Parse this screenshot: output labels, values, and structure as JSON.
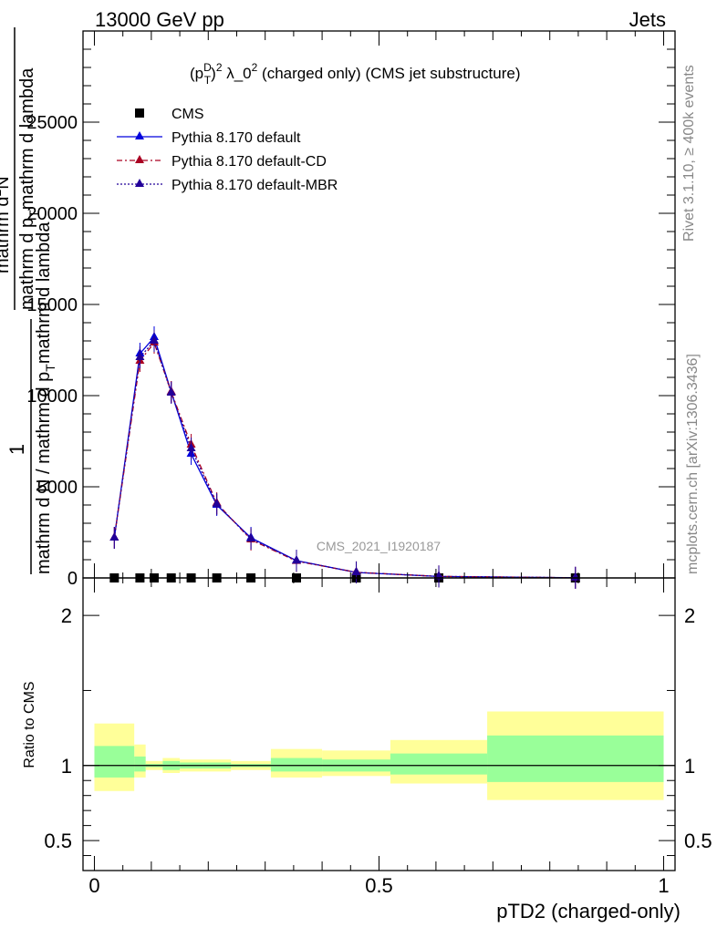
{
  "header": {
    "left": "13000 GeV pp",
    "right": "Jets"
  },
  "side": {
    "rivet": "Rivet 3.1.10, ≥ 400k events",
    "mcplots": "mcplots.cern.ch [arXiv:1306.3436]"
  },
  "watermark": "CMS_2021_I1920187",
  "chart_data": [
    {
      "type": "line",
      "title": "(p_T^D)^2 λ_0^2 (charged only) (CMS jet substructure)",
      "ylabel": "1 / mathrm d N / mathrm d p_T mathrm d lambda · mathrm d^2N / mathrm d p_T mathrm d lambda",
      "ylabel_parts": [
        "1",
        "mathrm d N / mathrm d p",
        "T",
        "mathrm d lambda",
        "mathrm d",
        "2",
        "N",
        "mathrm d p",
        "T",
        "mathrm d lambda"
      ],
      "xlim": [
        -0.02,
        1.02
      ],
      "ylim": [
        0,
        30000
      ],
      "yticks": [
        0,
        5000,
        10000,
        15000,
        20000,
        25000
      ],
      "ytick_labels": [
        "0",
        "5000",
        "10000",
        "15000",
        "20000",
        "25000"
      ],
      "legend_position": "top-left",
      "legend": [
        "CMS",
        "Pythia 8.170 default",
        "Pythia 8.170 default-CD",
        "Pythia 8.170 default-MBR"
      ],
      "bin_edges": [
        0.0,
        0.07,
        0.09,
        0.12,
        0.15,
        0.19,
        0.24,
        0.31,
        0.4,
        0.52,
        0.69,
        1.0
      ],
      "x": [
        0.035,
        0.08,
        0.105,
        0.135,
        0.17,
        0.215,
        0.275,
        0.355,
        0.46,
        0.605,
        0.845
      ],
      "series": [
        {
          "name": "CMS",
          "color": "#000000",
          "marker": "square",
          "values": [
            0,
            0,
            0,
            0,
            0,
            0,
            0,
            0,
            0,
            0,
            0
          ]
        },
        {
          "name": "Pythia 8.170 default",
          "color": "#0000dd",
          "marker": "triangle",
          "dash": "solid",
          "values": [
            2200,
            12300,
            13200,
            10200,
            6800,
            4000,
            2200,
            950,
            300,
            80,
            10
          ]
        },
        {
          "name": "Pythia 8.170 default-CD",
          "color": "#aa0022",
          "marker": "triangle",
          "dash": "dashdot",
          "values": [
            2200,
            11900,
            12900,
            10200,
            7300,
            4100,
            2100,
            920,
            310,
            85,
            10
          ]
        },
        {
          "name": "Pythia 8.170 default-MBR",
          "color": "#220099",
          "marker": "triangle",
          "dash": "dotted",
          "values": [
            2200,
            12100,
            13000,
            10150,
            7100,
            4050,
            2150,
            940,
            305,
            82,
            10
          ]
        }
      ]
    },
    {
      "type": "area",
      "ylabel": "Ratio to CMS",
      "xlabel": "pTD2 (charged-only)",
      "xlim": [
        -0.02,
        1.02
      ],
      "ylim": [
        0.3,
        2.25
      ],
      "yticks": [
        0.5,
        1,
        2
      ],
      "ytick_labels": [
        "0.5",
        "1",
        "2"
      ],
      "xticks": [
        0,
        0.5,
        1
      ],
      "xtick_labels": [
        "0",
        "0.5",
        "1"
      ],
      "bin_edges": [
        0.0,
        0.07,
        0.09,
        0.12,
        0.15,
        0.19,
        0.24,
        0.31,
        0.4,
        0.52,
        0.69,
        1.0
      ],
      "band_total": {
        "color": "#ffff99",
        "lo": [
          0.83,
          0.92,
          0.97,
          0.95,
          0.96,
          0.96,
          0.97,
          0.92,
          0.93,
          0.88,
          0.77
        ],
        "hi": [
          1.28,
          1.14,
          1.03,
          1.05,
          1.04,
          1.04,
          1.03,
          1.11,
          1.1,
          1.17,
          1.36
        ]
      },
      "band_stat": {
        "color": "#99ff99",
        "lo": [
          0.92,
          0.96,
          0.99,
          0.97,
          0.98,
          0.98,
          0.99,
          0.96,
          0.96,
          0.94,
          0.89
        ],
        "hi": [
          1.13,
          1.06,
          1.01,
          1.03,
          1.02,
          1.02,
          1.01,
          1.05,
          1.04,
          1.08,
          1.2
        ]
      },
      "reference": 1
    }
  ]
}
